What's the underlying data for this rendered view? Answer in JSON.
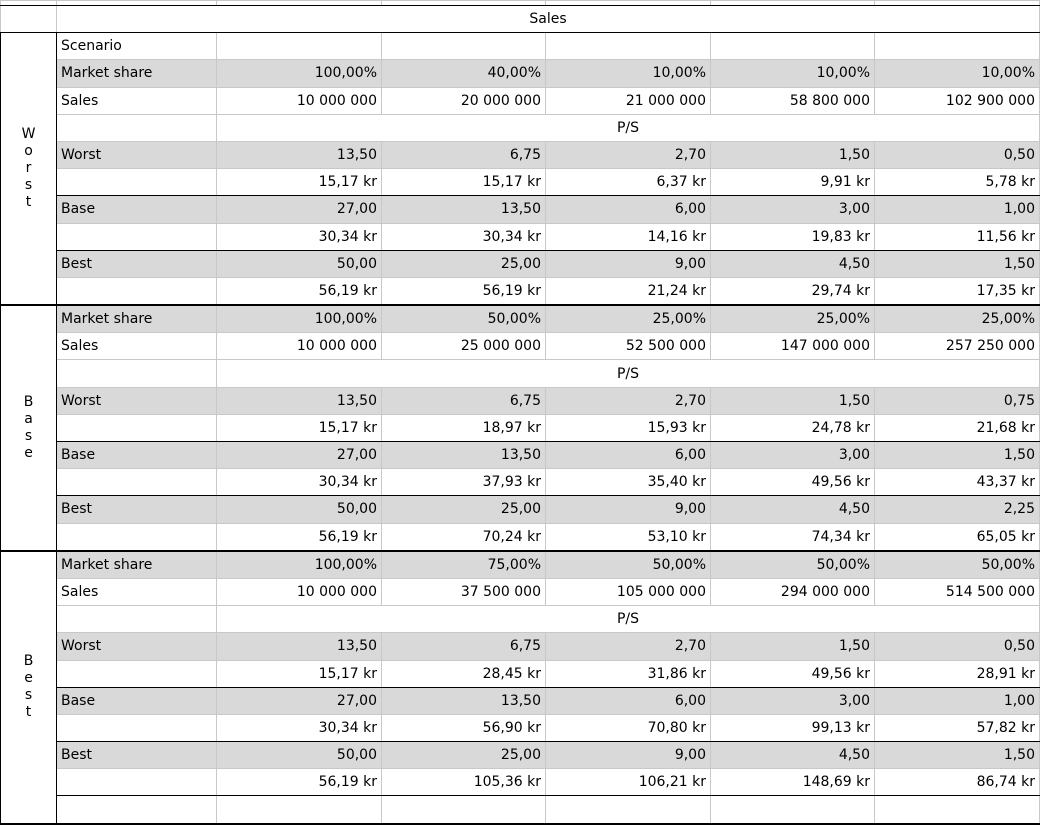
{
  "header": "Sales",
  "scenario_label": "Scenario",
  "ps_label": "P/S",
  "blocks": [
    {
      "name": "Worst",
      "name_letters": [
        "W",
        "o",
        "r",
        "s",
        "t"
      ],
      "market_share_label": "Market share",
      "market_share": [
        "100,00%",
        "40,00%",
        "10,00%",
        "10,00%",
        "10,00%"
      ],
      "sales_label": "Sales",
      "sales": [
        "10 000 000",
        "20 000 000",
        "21 000 000",
        "58 800 000",
        "102 900 000"
      ],
      "ps_rows": [
        {
          "label": "Worst",
          "multiple": [
            "13,50",
            "6,75",
            "2,70",
            "1,50",
            "0,50"
          ],
          "price": [
            "15,17 kr",
            "15,17 kr",
            "6,37 kr",
            "9,91 kr",
            "5,78 kr"
          ]
        },
        {
          "label": "Base",
          "multiple": [
            "27,00",
            "13,50",
            "6,00",
            "3,00",
            "1,00"
          ],
          "price": [
            "30,34 kr",
            "30,34 kr",
            "14,16 kr",
            "19,83 kr",
            "11,56 kr"
          ]
        },
        {
          "label": "Best",
          "multiple": [
            "50,00",
            "25,00",
            "9,00",
            "4,50",
            "1,50"
          ],
          "price": [
            "56,19 kr",
            "56,19 kr",
            "21,24 kr",
            "29,74 kr",
            "17,35 kr"
          ]
        }
      ]
    },
    {
      "name": "Base",
      "name_letters": [
        "B",
        "a",
        "s",
        "e"
      ],
      "market_share_label": "Market share",
      "market_share": [
        "100,00%",
        "50,00%",
        "25,00%",
        "25,00%",
        "25,00%"
      ],
      "sales_label": "Sales",
      "sales": [
        "10 000 000",
        "25 000 000",
        "52 500 000",
        "147 000 000",
        "257 250 000"
      ],
      "ps_rows": [
        {
          "label": "Worst",
          "multiple": [
            "13,50",
            "6,75",
            "2,70",
            "1,50",
            "0,75"
          ],
          "price": [
            "15,17 kr",
            "18,97 kr",
            "15,93 kr",
            "24,78 kr",
            "21,68 kr"
          ]
        },
        {
          "label": "Base",
          "multiple": [
            "27,00",
            "13,50",
            "6,00",
            "3,00",
            "1,50"
          ],
          "price": [
            "30,34 kr",
            "37,93 kr",
            "35,40 kr",
            "49,56 kr",
            "43,37 kr"
          ]
        },
        {
          "label": "Best",
          "multiple": [
            "50,00",
            "25,00",
            "9,00",
            "4,50",
            "2,25"
          ],
          "price": [
            "56,19 kr",
            "70,24 kr",
            "53,10 kr",
            "74,34 kr",
            "65,05 kr"
          ]
        }
      ]
    },
    {
      "name": "Best",
      "name_letters": [
        "B",
        "e",
        "s",
        "t"
      ],
      "market_share_label": "Market share",
      "market_share": [
        "100,00%",
        "75,00%",
        "50,00%",
        "50,00%",
        "50,00%"
      ],
      "sales_label": "Sales",
      "sales": [
        "10 000 000",
        "37 500 000",
        "105 000 000",
        "294 000 000",
        "514 500 000"
      ],
      "ps_rows": [
        {
          "label": "Worst",
          "multiple": [
            "13,50",
            "6,75",
            "2,70",
            "1,50",
            "0,50"
          ],
          "price": [
            "15,17 kr",
            "28,45 kr",
            "31,86 kr",
            "49,56 kr",
            "28,91 kr"
          ]
        },
        {
          "label": "Base",
          "multiple": [
            "27,00",
            "13,50",
            "6,00",
            "3,00",
            "1,00"
          ],
          "price": [
            "30,34 kr",
            "56,90 kr",
            "70,80 kr",
            "99,13 kr",
            "57,82 kr"
          ]
        },
        {
          "label": "Best",
          "multiple": [
            "50,00",
            "25,00",
            "9,00",
            "4,50",
            "1,50"
          ],
          "price": [
            "56,19 kr",
            "105,36 kr",
            "106,21 kr",
            "148,69 kr",
            "86,74 kr"
          ]
        }
      ]
    }
  ]
}
